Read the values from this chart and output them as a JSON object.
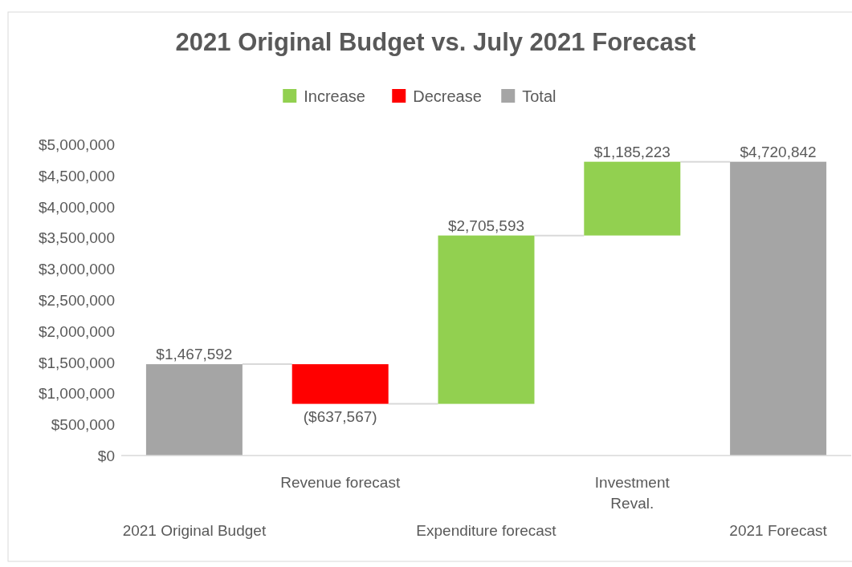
{
  "chart_data": {
    "type": "bar",
    "title": "2021 Original Budget vs. July 2021 Forecast",
    "categories": [
      "2021 Original Budget",
      "Revenue forecast",
      "Expenditure forecast",
      "Investment Reval.",
      "2021 Forecast"
    ],
    "series": [
      {
        "name": "Increase",
        "color": "#92d050",
        "values": [
          null,
          null,
          2705593,
          1185223,
          null
        ],
        "base": [
          null,
          null,
          830025,
          3535618,
          null
        ],
        "value_labels": [
          null,
          null,
          "$2,705,593",
          "$1,185,223",
          null
        ]
      },
      {
        "name": "Decrease",
        "color": "#ff0000",
        "values": [
          null,
          -637567,
          null,
          null,
          null
        ],
        "base": [
          null,
          1467592,
          null,
          null,
          null
        ],
        "value_labels": [
          null,
          "($637,567)",
          null,
          null,
          null
        ]
      },
      {
        "name": "Total",
        "color": "#a5a5a5",
        "values": [
          1467592,
          null,
          null,
          null,
          4720842
        ],
        "base": [
          0,
          null,
          null,
          null,
          0
        ],
        "value_labels": [
          "$1,467,592",
          null,
          null,
          null,
          "$4,720,842"
        ]
      }
    ],
    "ylim": [
      0,
      5000000
    ],
    "yticks": [
      {
        "value": 0,
        "label": "$0"
      },
      {
        "value": 500000,
        "label": "$500,000"
      },
      {
        "value": 1000000,
        "label": "$1,000,000"
      },
      {
        "value": 1500000,
        "label": "$1,500,000"
      },
      {
        "value": 2000000,
        "label": "$2,000,000"
      },
      {
        "value": 2500000,
        "label": "$2,500,000"
      },
      {
        "value": 3000000,
        "label": "$3,000,000"
      },
      {
        "value": 3500000,
        "label": "$3,500,000"
      },
      {
        "value": 4000000,
        "label": "$4,000,000"
      },
      {
        "value": 4500000,
        "label": "$4,500,000"
      },
      {
        "value": 5000000,
        "label": "$5,000,000"
      }
    ],
    "grid": false,
    "legend": "top"
  }
}
